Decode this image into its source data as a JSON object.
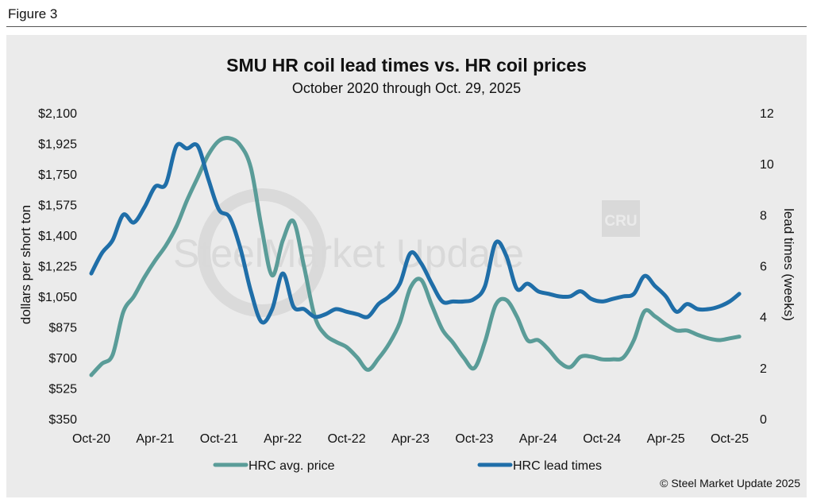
{
  "figure_label": "Figure 3",
  "watermark": {
    "text": "SteelMarket Update",
    "logo": "CRU"
  },
  "copyright": "© Steel Market Update 2025",
  "colors": {
    "price": "#5a9c98",
    "lead": "#1f6ea8",
    "panel": "#ebebeb",
    "text": "#111111"
  },
  "chart_data": {
    "type": "line",
    "title": "SMU HR coil lead times vs. HR coil prices",
    "subtitle": "October 2020 through Oct. 29, 2025",
    "ylabel": "dollars per short ton",
    "y2label": "lead times (weeks)",
    "ylim": [
      350,
      2100
    ],
    "y2lim": [
      0,
      12
    ],
    "yticks": [
      "$2,100",
      "$1,925",
      "$1,750",
      "$1,575",
      "$1,400",
      "$1,225",
      "$1,050",
      "$875",
      "$700",
      "$525",
      "$350"
    ],
    "y2ticks": [
      "12",
      "10",
      "8",
      "6",
      "4",
      "2",
      "0"
    ],
    "xlim": [
      0,
      60.9
    ],
    "x_tick_labels": [
      "Oct-20",
      "Apr-21",
      "Oct-21",
      "Apr-22",
      "Oct-22",
      "Apr-23",
      "Oct-23",
      "Apr-24",
      "Oct-24",
      "Apr-25",
      "Oct-25"
    ],
    "legend": [
      "HRC avg. price",
      "HRC lead times"
    ],
    "series": [
      {
        "name": "HRC avg. price",
        "axis": "left",
        "x": [
          0,
          1,
          2,
          3,
          4,
          5,
          6,
          7,
          8,
          9,
          10,
          11,
          12,
          13,
          14,
          15,
          16,
          17,
          18,
          19,
          20,
          21,
          22,
          23,
          24,
          25,
          26,
          27,
          28,
          29,
          30,
          31,
          32,
          33,
          34,
          35,
          36,
          37,
          38,
          39,
          40,
          41,
          42,
          43,
          44,
          45,
          46,
          47,
          48,
          49,
          50,
          51,
          52,
          53,
          54,
          55,
          56,
          57,
          58,
          59,
          60,
          60.9
        ],
        "y": [
          600,
          665,
          715,
          960,
          1050,
          1160,
          1255,
          1340,
          1450,
          1600,
          1730,
          1860,
          1940,
          1955,
          1915,
          1785,
          1445,
          1170,
          1370,
          1480,
          1220,
          935,
          830,
          790,
          760,
          700,
          630,
          695,
          780,
          900,
          1100,
          1145,
          1000,
          860,
          785,
          700,
          640,
          790,
          1000,
          1030,
          935,
          800,
          800,
          745,
          675,
          645,
          705,
          705,
          690,
          690,
          700,
          800,
          965,
          935,
          890,
          855,
          855,
          830,
          810,
          800,
          810,
          820
        ]
      },
      {
        "name": "HRC lead times",
        "axis": "right",
        "x": [
          0,
          1,
          2,
          3,
          4,
          5,
          6,
          7,
          8,
          9,
          10,
          11,
          12,
          13,
          14,
          15,
          16,
          17,
          18,
          19,
          20,
          21,
          22,
          23,
          24,
          25,
          26,
          27,
          28,
          29,
          30,
          31,
          32,
          33,
          34,
          35,
          36,
          37,
          38,
          39,
          40,
          41,
          42,
          43,
          44,
          45,
          46,
          47,
          48,
          49,
          50,
          51,
          52,
          53,
          54,
          55,
          56,
          57,
          58,
          59,
          60,
          60.9
        ],
        "y": [
          5.7,
          6.5,
          7.0,
          8.0,
          7.7,
          8.3,
          9.1,
          9.2,
          10.7,
          10.6,
          10.7,
          9.4,
          8.2,
          7.9,
          6.7,
          5.0,
          3.8,
          4.3,
          5.7,
          4.4,
          4.3,
          4.0,
          4.1,
          4.3,
          4.2,
          4.1,
          4.0,
          4.5,
          4.8,
          5.3,
          6.5,
          6.1,
          5.3,
          4.6,
          4.6,
          4.6,
          4.7,
          5.2,
          6.9,
          6.4,
          5.1,
          5.3,
          5.0,
          4.9,
          4.8,
          4.8,
          5.0,
          4.7,
          4.6,
          4.7,
          4.8,
          4.9,
          5.6,
          5.2,
          4.8,
          4.2,
          4.5,
          4.3,
          4.3,
          4.4,
          4.6,
          4.9
        ]
      }
    ]
  }
}
